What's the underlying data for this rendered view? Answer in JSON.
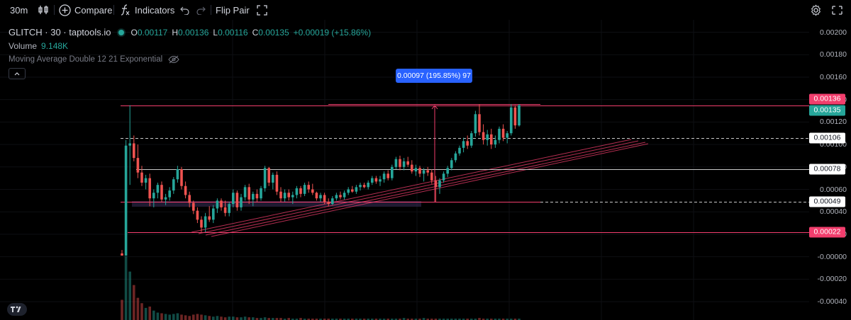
{
  "toolbar": {
    "interval": "30m",
    "compare": "Compare",
    "indicators": "Indicators",
    "flip_pair": "Flip Pair"
  },
  "legend": {
    "symbol": "GLITCH · 30 · taptools.io",
    "open_key": "O",
    "open": "0.00117",
    "high_key": "H",
    "high": "0.00136",
    "low_key": "L",
    "low": "0.00116",
    "close_key": "C",
    "close": "0.00135",
    "change": "+0.00019 (+15.86%)",
    "volume_label": "Volume",
    "volume_value": "9.148K",
    "ma_label": "Moving Average Double 12 21 Exponential"
  },
  "measure_label": "0.00097 (195.85%) 97",
  "colors": {
    "up": "#26a69a",
    "down": "#ef5350",
    "line_pink": "#f23e6d",
    "white_line": "#c8c8c8",
    "measure_blue": "#2962ff"
  },
  "chart_data": {
    "type": "candlestick",
    "y_ticks": [
      "0.00200",
      "0.00180",
      "0.00160",
      "0.00140",
      "0.00120",
      "0.00100",
      "0.00080",
      "0.00060",
      "0.00040",
      "0.00020",
      "-0.00000",
      "-0.00020",
      "-0.00040"
    ],
    "ylim": [
      -0.00045,
      0.00206
    ],
    "price_labels": [
      {
        "value": 0.00136,
        "text": "0.00136",
        "style": "pink"
      },
      {
        "value": 0.00135,
        "text": "0.00135",
        "style": "green"
      },
      {
        "value": 0.00106,
        "text": "0.00106",
        "style": "white"
      },
      {
        "value": 0.00078,
        "text": "0.00078",
        "style": "white"
      },
      {
        "value": 0.00049,
        "text": "0.00049",
        "style": "white"
      },
      {
        "value": 0.00022,
        "text": "0.00022",
        "style": "pink"
      }
    ],
    "horizontal_levels": [
      {
        "value": 0.00136,
        "style": "pink-solid",
        "x_from": 463,
        "x_to": 762
      },
      {
        "value": 0.00135,
        "style": "pink-solid",
        "x_from": 170,
        "x_to": 1141
      },
      {
        "value": 0.00106,
        "style": "white-dashed",
        "x_from": 170,
        "x_to": 1141
      },
      {
        "value": 0.00078,
        "style": "white-solid",
        "x_from": 192,
        "x_to": 1141
      },
      {
        "value": 0.00049,
        "style": "pink-solid",
        "x_from": 170,
        "x_to": 762
      },
      {
        "value": 0.00049,
        "style": "white-dashed",
        "x_from": 762,
        "x_to": 1141
      },
      {
        "value": 0.00022,
        "style": "pink-solid",
        "x_from": 180,
        "x_to": 1141
      }
    ],
    "candles": [
      [
        3e-05,
        6e-05,
        1e-05,
        1e-05
      ],
      [
        1e-05,
        0.00104,
        1e-05,
        0.00099
      ],
      [
        0.00099,
        0.00135,
        0.00064,
        0.00101
      ],
      [
        0.00101,
        0.00108,
        0.00085,
        0.00088
      ],
      [
        0.00088,
        0.001,
        0.0007,
        0.00075
      ],
      [
        0.00075,
        0.00081,
        0.00063,
        0.00066
      ],
      [
        0.00066,
        0.00073,
        0.0006,
        0.0007
      ],
      [
        0.0007,
        0.00074,
        0.00045,
        0.00052
      ],
      [
        0.00052,
        0.0006,
        0.00044,
        0.00057
      ],
      [
        0.00057,
        0.00066,
        0.00052,
        0.00064
      ],
      [
        0.00064,
        0.00067,
        0.00049,
        0.00051
      ],
      [
        0.00051,
        0.00056,
        0.00046,
        0.00053
      ],
      [
        0.00053,
        0.00062,
        0.0005,
        0.00059
      ],
      [
        0.00059,
        0.00071,
        0.00056,
        0.00069
      ],
      [
        0.00069,
        0.00081,
        0.00066,
        0.00078
      ],
      [
        0.00078,
        0.0008,
        0.0006,
        0.00063
      ],
      [
        0.00063,
        0.00067,
        0.00052,
        0.00055
      ],
      [
        0.00055,
        0.00058,
        0.00044,
        0.00048
      ],
      [
        0.00048,
        0.0005,
        0.00038,
        0.00041
      ],
      [
        0.00041,
        0.00044,
        0.0003,
        0.00033
      ],
      [
        0.00033,
        0.00036,
        0.00022,
        0.00026
      ],
      [
        0.00026,
        0.00039,
        0.00022,
        0.00036
      ],
      [
        0.00036,
        0.00045,
        0.00031,
        0.00033
      ],
      [
        0.00033,
        0.00046,
        0.0003,
        0.00043
      ],
      [
        0.00043,
        0.00052,
        0.00039,
        0.0005
      ],
      [
        0.0005,
        0.00052,
        0.00041,
        0.00044
      ],
      [
        0.00044,
        0.0005,
        0.00036,
        0.00039
      ],
      [
        0.00039,
        0.00049,
        0.00036,
        0.00047
      ],
      [
        0.00047,
        0.0006,
        0.00044,
        0.00057
      ],
      [
        0.00057,
        0.00059,
        0.00041,
        0.00044
      ],
      [
        0.00044,
        0.00056,
        0.00041,
        0.00053
      ],
      [
        0.00053,
        0.00064,
        0.0005,
        0.00062
      ],
      [
        0.00062,
        0.00065,
        0.00047,
        0.00051
      ],
      [
        0.00051,
        0.00058,
        0.00045,
        0.00056
      ],
      [
        0.00056,
        0.0006,
        0.00049,
        0.00052
      ],
      [
        0.00052,
        0.00063,
        0.0005,
        0.00061
      ],
      [
        0.00061,
        0.00081,
        0.00058,
        0.00079
      ],
      [
        0.00079,
        0.0008,
        0.00063,
        0.00066
      ],
      [
        0.00066,
        0.00075,
        0.0006,
        0.00073
      ],
      [
        0.00073,
        0.00076,
        0.00055,
        0.00058
      ],
      [
        0.00058,
        0.00062,
        0.00049,
        0.00052
      ],
      [
        0.00052,
        0.0006,
        0.00049,
        0.00057
      ],
      [
        0.00057,
        0.0006,
        0.0005,
        0.00053
      ],
      [
        0.00053,
        0.00058,
        0.00047,
        0.00055
      ],
      [
        0.00055,
        0.00063,
        0.00052,
        0.00061
      ],
      [
        0.00061,
        0.00063,
        0.00053,
        0.00056
      ],
      [
        0.00056,
        0.00066,
        0.00054,
        0.00064
      ],
      [
        0.00064,
        0.00067,
        0.00057,
        0.0006
      ],
      [
        0.0006,
        0.00065,
        0.00055,
        0.00057
      ],
      [
        0.00057,
        0.00058,
        0.0005,
        0.00052
      ],
      [
        0.00052,
        0.00057,
        0.00049,
        0.00055
      ],
      [
        0.00055,
        0.00057,
        0.00047,
        0.00049
      ],
      [
        0.00049,
        0.00052,
        0.00045,
        0.00047
      ],
      [
        0.00047,
        0.00054,
        0.00046,
        0.00052
      ],
      [
        0.00052,
        0.00057,
        0.0005,
        0.00055
      ],
      [
        0.00055,
        0.00058,
        0.00051,
        0.00053
      ],
      [
        0.00053,
        0.00059,
        0.00051,
        0.00057
      ],
      [
        0.00057,
        0.00062,
        0.00055,
        0.0006
      ],
      [
        0.0006,
        0.00063,
        0.00057,
        0.00058
      ],
      [
        0.00058,
        0.00064,
        0.00056,
        0.00062
      ],
      [
        0.00062,
        0.00066,
        0.00059,
        0.00064
      ],
      [
        0.00064,
        0.00066,
        0.00061,
        0.00062
      ],
      [
        0.00062,
        0.00068,
        0.0006,
        0.00066
      ],
      [
        0.00066,
        0.00072,
        0.00064,
        0.0007
      ],
      [
        0.0007,
        0.00072,
        0.00065,
        0.00067
      ],
      [
        0.00067,
        0.00072,
        0.00063,
        0.00069
      ],
      [
        0.00069,
        0.00076,
        0.00066,
        0.00074
      ],
      [
        0.00074,
        0.00077,
        0.00068,
        0.0007
      ],
      [
        0.0007,
        0.00082,
        0.00068,
        0.0008
      ],
      [
        0.0008,
        0.00089,
        0.00078,
        0.00087
      ],
      [
        0.00087,
        0.0009,
        0.00077,
        0.0008
      ],
      [
        0.0008,
        0.00088,
        0.00077,
        0.00085
      ],
      [
        0.00085,
        0.00089,
        0.0008,
        0.00082
      ],
      [
        0.00082,
        0.00086,
        0.00074,
        0.00076
      ],
      [
        0.00076,
        0.00082,
        0.00072,
        0.00079
      ],
      [
        0.00079,
        0.00081,
        0.00071,
        0.00074
      ],
      [
        0.00074,
        0.00079,
        0.00067,
        0.00077
      ],
      [
        0.00077,
        0.0008,
        0.00072,
        0.00075
      ],
      [
        0.00075,
        0.00078,
        0.00065,
        0.00068
      ],
      [
        0.00068,
        0.00072,
        0.00049,
        0.00062
      ],
      [
        0.00062,
        0.0007,
        0.00056,
        0.00068
      ],
      [
        0.00068,
        0.00076,
        0.00066,
        0.00074
      ],
      [
        0.00074,
        0.00081,
        0.00071,
        0.00079
      ],
      [
        0.00079,
        0.00088,
        0.00077,
        0.00086
      ],
      [
        0.00086,
        0.00094,
        0.00084,
        0.00092
      ],
      [
        0.00092,
        0.00099,
        0.0009,
        0.00097
      ],
      [
        0.00097,
        0.00106,
        0.00093,
        0.00103
      ],
      [
        0.00103,
        0.00108,
        0.00096,
        0.00099
      ],
      [
        0.00099,
        0.00112,
        0.00097,
        0.0011
      ],
      [
        0.0011,
        0.0013,
        0.00107,
        0.00127
      ],
      [
        0.00127,
        0.00136,
        0.00108,
        0.00111
      ],
      [
        0.00111,
        0.00118,
        0.001,
        0.00104
      ],
      [
        0.00104,
        0.00113,
        0.00099,
        0.00109
      ],
      [
        0.00109,
        0.00114,
        0.00096,
        0.001
      ],
      [
        0.001,
        0.00108,
        0.00097,
        0.00104
      ],
      [
        0.00104,
        0.00116,
        0.00101,
        0.00114
      ],
      [
        0.00114,
        0.00118,
        0.00103,
        0.00106
      ],
      [
        0.00106,
        0.00112,
        0.00101,
        0.0011
      ],
      [
        0.0011,
        0.00136,
        0.00108,
        0.00133
      ],
      [
        0.00133,
        0.00135,
        0.00114,
        0.00117
      ],
      [
        0.00117,
        0.00136,
        0.00116,
        0.00135
      ]
    ],
    "volumes": [
      0.3,
      0.95,
      0.72,
      0.52,
      0.33,
      0.25,
      0.18,
      0.2,
      0.14,
      0.11,
      0.1,
      0.09,
      0.08,
      0.09,
      0.1,
      0.08,
      0.07,
      0.06,
      0.08,
      0.09,
      0.08,
      0.07,
      0.06,
      0.05,
      0.06,
      0.05,
      0.04,
      0.05,
      0.05,
      0.04,
      0.04,
      0.05,
      0.04,
      0.04,
      0.03,
      0.03,
      0.04,
      0.03,
      0.03,
      0.03,
      0.03,
      0.02,
      0.03,
      0.02,
      0.02,
      0.03,
      0.02,
      0.02,
      0.02,
      0.02,
      0.02,
      0.02,
      0.02,
      0.02,
      0.02,
      0.02,
      0.02,
      0.02,
      0.02,
      0.02,
      0.02,
      0.02,
      0.02,
      0.02,
      0.02,
      0.02,
      0.02,
      0.02,
      0.02,
      0.02,
      0.02,
      0.03,
      0.02,
      0.02,
      0.02,
      0.02,
      0.03,
      0.02,
      0.02,
      0.02,
      0.02,
      0.02,
      0.02,
      0.02,
      0.02,
      0.02,
      0.02,
      0.02,
      0.02,
      0.02,
      0.03,
      0.02,
      0.02,
      0.02,
      0.02,
      0.02,
      0.02,
      0.02,
      0.02,
      0.02,
      0.02
    ]
  }
}
